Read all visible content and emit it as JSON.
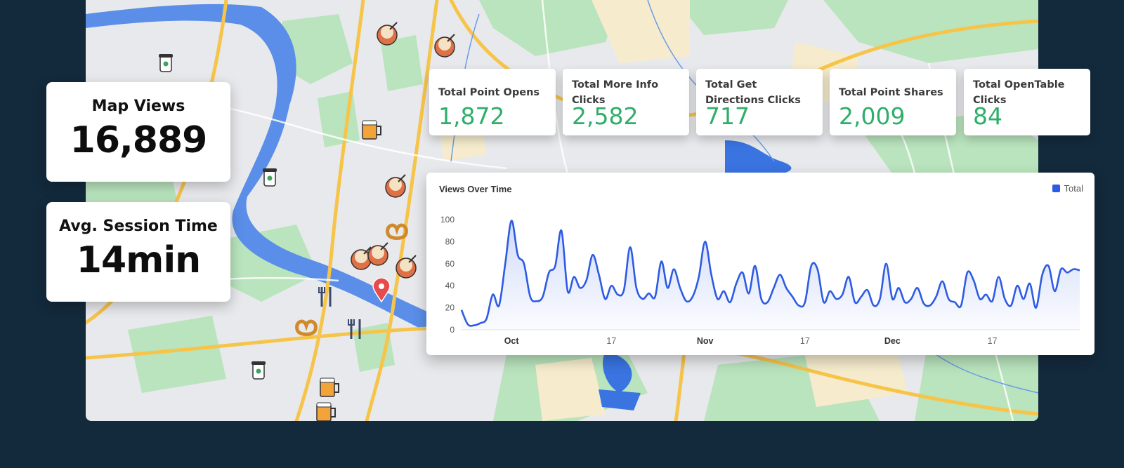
{
  "summary": {
    "map_views": {
      "label": "Map Views",
      "value": "16,889"
    },
    "session": {
      "label": "Avg. Session Time",
      "value": "14min"
    }
  },
  "kpis": [
    {
      "label": "Total Point Opens",
      "value": "1,872"
    },
    {
      "label": "Total More Info Clicks",
      "value": "2,582"
    },
    {
      "label": "Total Get Directions Clicks",
      "value": "717"
    },
    {
      "label": "Total Point Shares",
      "value": "2,009"
    },
    {
      "label": "Total OpenTable Clicks",
      "value": "84"
    }
  ],
  "map": {
    "markers": [
      {
        "icon": "coffee-cup-icon"
      },
      {
        "icon": "cocktail-icon"
      },
      {
        "icon": "beer-mug-icon"
      },
      {
        "icon": "pretzel-icon"
      },
      {
        "icon": "fork-knife-icon"
      },
      {
        "icon": "location-pin-icon"
      }
    ]
  },
  "chart_data": {
    "type": "line",
    "title": "Views Over Time",
    "legend": {
      "placement": "top-right",
      "entries": [
        "Total"
      ]
    },
    "series": [
      {
        "name": "Total",
        "color": "#2d5be3",
        "x": [
          "09-23",
          "09-24",
          "09-25",
          "09-26",
          "09-27",
          "09-28",
          "09-29",
          "09-30",
          "10-01",
          "10-02",
          "10-03",
          "10-04",
          "10-05",
          "10-06",
          "10-07",
          "10-08",
          "10-09",
          "10-10",
          "10-11",
          "10-12",
          "10-13",
          "10-14",
          "10-15",
          "10-16",
          "10-17",
          "10-18",
          "10-19",
          "10-20",
          "10-21",
          "10-22",
          "10-23",
          "10-24",
          "10-25",
          "10-26",
          "10-27",
          "10-28",
          "10-29",
          "10-30",
          "10-31",
          "11-01",
          "11-02",
          "11-03",
          "11-04",
          "11-05",
          "11-06",
          "11-07",
          "11-08",
          "11-09",
          "11-10",
          "11-11",
          "11-12",
          "11-13",
          "11-14",
          "11-15",
          "11-16",
          "11-17",
          "11-18",
          "11-19",
          "11-20",
          "11-21",
          "11-22",
          "11-23",
          "11-24",
          "11-25",
          "11-26",
          "11-27",
          "11-28",
          "11-29",
          "11-30",
          "12-01",
          "12-02",
          "12-03",
          "12-04",
          "12-05",
          "12-06",
          "12-07",
          "12-08",
          "12-09",
          "12-10",
          "12-11",
          "12-12",
          "12-13",
          "12-14",
          "12-15",
          "12-16",
          "12-17",
          "12-18",
          "12-19",
          "12-20",
          "12-21",
          "12-22",
          "12-23",
          "12-24",
          "12-25",
          "12-26",
          "12-27",
          "12-28",
          "12-29",
          "12-30",
          "12-31"
        ],
        "values": [
          18,
          5,
          4,
          6,
          10,
          32,
          22,
          60,
          99,
          68,
          60,
          30,
          26,
          30,
          52,
          58,
          90,
          35,
          48,
          38,
          45,
          68,
          50,
          28,
          40,
          32,
          36,
          75,
          38,
          28,
          33,
          30,
          62,
          38,
          55,
          38,
          26,
          30,
          48,
          80,
          50,
          28,
          35,
          25,
          42,
          52,
          33,
          58,
          28,
          25,
          38,
          50,
          38,
          30,
          22,
          25,
          58,
          55,
          25,
          35,
          28,
          32,
          48,
          25,
          30,
          36,
          22,
          28,
          60,
          28,
          38,
          25,
          28,
          38,
          24,
          22,
          30,
          44,
          28,
          25,
          22,
          52,
          45,
          28,
          32,
          26,
          48,
          28,
          22,
          40,
          28,
          42,
          20,
          50,
          58,
          35,
          55,
          52,
          55,
          54
        ],
        "x_ticks": [
          {
            "x": "10-01",
            "label": "Oct",
            "major": true
          },
          {
            "x": "10-17",
            "label": "17",
            "major": false
          },
          {
            "x": "11-01",
            "label": "Nov",
            "major": true
          },
          {
            "x": "11-17",
            "label": "17",
            "major": false
          },
          {
            "x": "12-01",
            "label": "Dec",
            "major": true
          },
          {
            "x": "12-17",
            "label": "17",
            "major": false
          }
        ],
        "y_ticks": [
          "0",
          "20",
          "40",
          "60",
          "80",
          "100"
        ]
      }
    ],
    "ylim": [
      0,
      100
    ],
    "grid": false
  }
}
